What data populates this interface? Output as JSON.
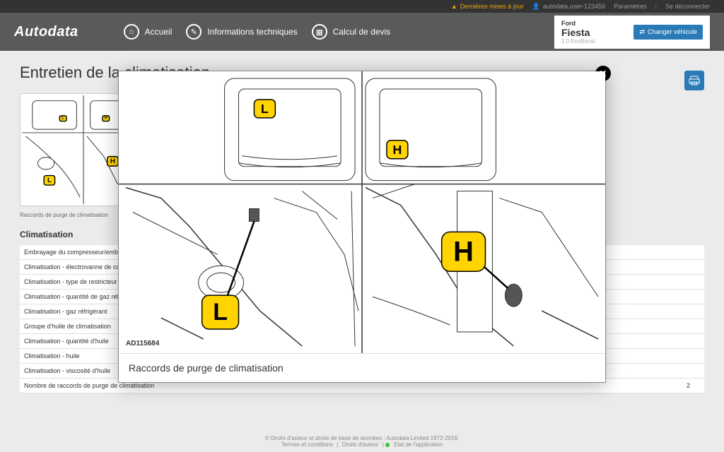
{
  "topbar": {
    "updates": "Dernières mises à jour",
    "user": "autodata.user-123456",
    "settings": "Paramètres",
    "logout": "Se déconnecter"
  },
  "nav": {
    "logo": "Autodata",
    "home": "Accueil",
    "tech": "Informations techniques",
    "quote": "Calcul de devis"
  },
  "vehicle": {
    "make": "Ford",
    "model": "Fiesta",
    "variant": "1.0 EcoBoost",
    "change": "Changer véhicule"
  },
  "page": {
    "title": "Entretien de la climatisation",
    "thumb_caption": "Raccords de purge de climatisation",
    "section_title": "Climatisation"
  },
  "table_rows": [
    {
      "label": "Embrayage du compresseur/embrayage magnétique",
      "value": ""
    },
    {
      "label": "Climatisation - électrovanne de commande de capacité",
      "value": ""
    },
    {
      "label": "Climatisation - type de restricteur",
      "value": ""
    },
    {
      "label": "Climatisation - quantité de gaz réfrigérant",
      "value": ""
    },
    {
      "label": "Climatisation - gaz réfrigérant",
      "value": ""
    },
    {
      "label": "Groupe d'huile de climatisation",
      "value": ""
    },
    {
      "label": "Climatisation - quantité d'huile",
      "value": ""
    },
    {
      "label": "Climatisation - huile",
      "value": ""
    },
    {
      "label": "Climatisation - viscosité d'huile",
      "value": ""
    },
    {
      "label": "Nombre de raccords de purge de climatisation",
      "value": "2"
    }
  ],
  "modal": {
    "ref": "AD115684",
    "caption": "Raccords de purge de climatisation",
    "marker_low": "L",
    "marker_high": "H"
  },
  "footer": {
    "copyright": "© Droits d'auteur et droits de base de données : Autodata Limited 1972-2018.",
    "terms": "Termes et conditions",
    "rights": "Droits d'auteur",
    "status": "Etat de l'application"
  },
  "colors": {
    "topbar_bg": "#333333",
    "navbar_bg": "#5a5a5a",
    "accent": "#2a7ab8",
    "marker_fill": "#ffd400",
    "updates": "#e8a20c"
  }
}
